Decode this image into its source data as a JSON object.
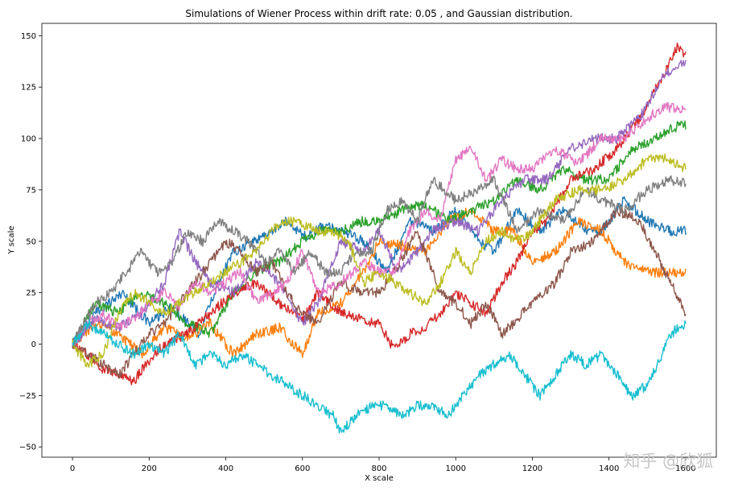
{
  "chart_data": {
    "type": "line",
    "title": "Simulations of Wiener Process within drift rate: 0.05 , and Gaussian distribution.",
    "xlabel": "X scale",
    "ylabel": "Y scale",
    "xlim": [
      -80,
      1680
    ],
    "ylim": [
      -55,
      156
    ],
    "xticks": [
      "0",
      "200",
      "400",
      "600",
      "800",
      "1000",
      "1200",
      "1400",
      "1600"
    ],
    "yticks": [
      "−50",
      "−25",
      "0",
      "25",
      "50",
      "75",
      "100",
      "125",
      "150"
    ],
    "grid": false,
    "legend": "none",
    "series": [
      {
        "color": "#1f77b4",
        "x": [
          0,
          60,
          130,
          200,
          260,
          330,
          380,
          420,
          470,
          520,
          560,
          610,
          660,
          700,
          760,
          820,
          880,
          940,
          1000,
          1060,
          1100,
          1160,
          1220,
          1280,
          1340,
          1380,
          1440,
          1500,
          1560,
          1600
        ],
        "values": [
          0,
          15,
          25,
          10,
          18,
          5,
          30,
          45,
          50,
          55,
          60,
          52,
          58,
          55,
          50,
          35,
          60,
          55,
          65,
          50,
          45,
          65,
          55,
          65,
          55,
          55,
          70,
          60,
          55,
          55
        ]
      },
      {
        "color": "#ff7f0e",
        "x": [
          0,
          60,
          120,
          180,
          240,
          300,
          360,
          420,
          480,
          540,
          600,
          640,
          700,
          760,
          800,
          860,
          920,
          980,
          1040,
          1100,
          1150,
          1200,
          1260,
          1320,
          1380,
          1440,
          1500,
          1560,
          1600
        ],
        "values": [
          0,
          10,
          5,
          -5,
          8,
          3,
          10,
          -5,
          5,
          8,
          -5,
          15,
          20,
          35,
          50,
          48,
          45,
          60,
          65,
          55,
          55,
          40,
          45,
          60,
          55,
          40,
          35,
          35,
          34
        ]
      },
      {
        "color": "#2ca02c",
        "x": [
          0,
          60,
          120,
          180,
          240,
          300,
          360,
          420,
          480,
          540,
          600,
          650,
          700,
          760,
          800,
          860,
          920,
          980,
          1040,
          1100,
          1160,
          1220,
          1280,
          1340,
          1400,
          1460,
          1520,
          1560,
          1600
        ],
        "values": [
          0,
          20,
          15,
          25,
          20,
          10,
          5,
          25,
          35,
          40,
          50,
          55,
          55,
          60,
          60,
          65,
          68,
          60,
          65,
          70,
          80,
          75,
          85,
          80,
          80,
          95,
          100,
          105,
          107
        ]
      },
      {
        "color": "#d62728",
        "x": [
          0,
          40,
          80,
          120,
          160,
          200,
          240,
          300,
          360,
          420,
          480,
          540,
          600,
          640,
          700,
          760,
          800,
          840,
          880,
          920,
          960,
          1000,
          1040,
          1080,
          1120,
          1160,
          1200,
          1240,
          1300,
          1360,
          1420,
          1480,
          1540,
          1580,
          1600
        ],
        "values": [
          0,
          -5,
          -12,
          -15,
          -18,
          -8,
          0,
          5,
          15,
          25,
          30,
          20,
          12,
          25,
          15,
          12,
          10,
          -3,
          5,
          8,
          15,
          25,
          20,
          15,
          30,
          40,
          55,
          60,
          80,
          85,
          95,
          110,
          130,
          145,
          140
        ]
      },
      {
        "color": "#9467bd",
        "x": [
          0,
          60,
          120,
          180,
          240,
          280,
          320,
          360,
          420,
          480,
          540,
          600,
          640,
          700,
          760,
          800,
          850,
          900,
          940,
          1000,
          1060,
          1120,
          1180,
          1240,
          1300,
          1360,
          1420,
          1480,
          1540,
          1580,
          1600
        ],
        "values": [
          0,
          12,
          8,
          15,
          30,
          55,
          40,
          30,
          25,
          40,
          30,
          10,
          20,
          50,
          45,
          55,
          35,
          45,
          55,
          60,
          55,
          70,
          80,
          80,
          95,
          100,
          100,
          110,
          130,
          135,
          138
        ]
      },
      {
        "color": "#8c564b",
        "x": [
          0,
          40,
          80,
          120,
          160,
          200,
          240,
          280,
          320,
          360,
          400,
          440,
          480,
          520,
          560,
          600,
          640,
          700,
          760,
          800,
          840,
          900,
          960,
          1000,
          1040,
          1080,
          1120,
          1160,
          1200,
          1260,
          1300,
          1360,
          1420,
          1480,
          1520,
          1560,
          1600
        ],
        "values": [
          0,
          -5,
          -10,
          -15,
          -5,
          5,
          10,
          20,
          30,
          40,
          50,
          45,
          35,
          40,
          25,
          15,
          10,
          30,
          25,
          25,
          35,
          55,
          25,
          20,
          10,
          20,
          5,
          12,
          20,
          30,
          45,
          50,
          65,
          60,
          45,
          30,
          15
        ]
      },
      {
        "color": "#e377c2",
        "x": [
          0,
          40,
          80,
          120,
          160,
          200,
          240,
          280,
          320,
          360,
          400,
          440,
          480,
          520,
          560,
          600,
          640,
          700,
          760,
          800,
          840,
          880,
          920,
          960,
          1000,
          1040,
          1080,
          1120,
          1160,
          1200,
          1260,
          1320,
          1380,
          1440,
          1500,
          1540,
          1580,
          1600
        ],
        "values": [
          0,
          10,
          15,
          8,
          12,
          20,
          25,
          18,
          30,
          25,
          30,
          35,
          20,
          25,
          30,
          45,
          25,
          30,
          40,
          35,
          35,
          55,
          65,
          60,
          90,
          95,
          80,
          90,
          85,
          85,
          95,
          88,
          100,
          100,
          110,
          115,
          115,
          113
        ]
      },
      {
        "color": "#7f7f7f",
        "x": [
          0,
          60,
          100,
          140,
          180,
          220,
          260,
          300,
          340,
          380,
          420,
          460,
          500,
          540,
          580,
          620,
          660,
          700,
          740,
          780,
          820,
          860,
          900,
          940,
          1000,
          1060,
          1100,
          1160,
          1220,
          1280,
          1340,
          1380,
          1440,
          1500,
          1560,
          1600
        ],
        "values": [
          0,
          20,
          25,
          35,
          45,
          35,
          40,
          55,
          50,
          60,
          55,
          50,
          40,
          45,
          35,
          45,
          35,
          35,
          45,
          45,
          65,
          70,
          60,
          80,
          70,
          75,
          80,
          55,
          65,
          60,
          75,
          70,
          65,
          75,
          80,
          78
        ]
      },
      {
        "color": "#bcbd22",
        "x": [
          0,
          40,
          80,
          120,
          160,
          200,
          240,
          280,
          320,
          360,
          400,
          440,
          480,
          520,
          560,
          600,
          640,
          680,
          720,
          760,
          800,
          840,
          880,
          920,
          960,
          1000,
          1040,
          1080,
          1120,
          1160,
          1200,
          1260,
          1320,
          1380,
          1440,
          1500,
          1560,
          1600
        ],
        "values": [
          0,
          -10,
          -5,
          15,
          25,
          20,
          15,
          20,
          25,
          30,
          35,
          40,
          45,
          55,
          60,
          58,
          55,
          55,
          50,
          30,
          35,
          30,
          25,
          20,
          30,
          45,
          35,
          50,
          55,
          50,
          55,
          70,
          75,
          75,
          80,
          90,
          90,
          85
        ]
      },
      {
        "color": "#17becf",
        "x": [
          0,
          40,
          80,
          120,
          160,
          200,
          240,
          280,
          320,
          360,
          400,
          440,
          480,
          520,
          560,
          600,
          640,
          680,
          700,
          740,
          780,
          820,
          860,
          900,
          940,
          980,
          1020,
          1060,
          1100,
          1140,
          1180,
          1220,
          1260,
          1300,
          1340,
          1380,
          1420,
          1460,
          1500,
          1540,
          1560,
          1600
        ],
        "values": [
          0,
          10,
          5,
          0,
          -5,
          0,
          -5,
          5,
          -10,
          -5,
          -10,
          -5,
          -10,
          -15,
          -20,
          -25,
          -30,
          -35,
          -43,
          -35,
          -30,
          -30,
          -35,
          -30,
          -30,
          -35,
          -25,
          -15,
          -10,
          -5,
          -15,
          -25,
          -15,
          -5,
          -10,
          -5,
          -15,
          -25,
          -20,
          -5,
          5,
          10
        ]
      }
    ]
  },
  "watermark": "知乎 @欣狐"
}
